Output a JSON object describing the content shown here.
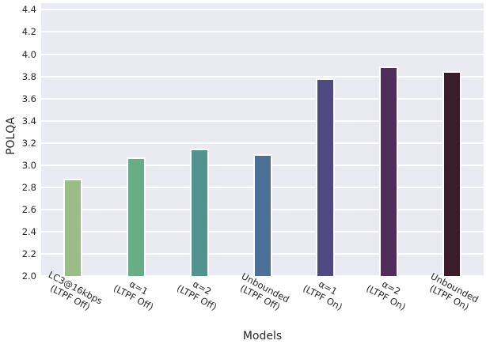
{
  "style": {
    "figure_bg": "#ffffff",
    "plot_bg": "#eaeaf2",
    "grid_color": "#ffffff",
    "text_color": "#262626",
    "bar_edge_color": "#ffffff"
  },
  "chart_data": {
    "type": "bar",
    "title": "",
    "xlabel": "Models",
    "ylabel": "POLQA",
    "ylim": [
      2.0,
      4.46
    ],
    "yticks": [
      2.0,
      2.2,
      2.4,
      2.6,
      2.8,
      3.0,
      3.2,
      3.4,
      3.6,
      3.8,
      4.0,
      4.2,
      4.4
    ],
    "grid": "horizontal-only, white solid lines on light lavender background (seaborn darkgrid)",
    "legend": "none",
    "categories": [
      "LC3@16kbps\n(LTPF Off)",
      "α=1\n(LTPF Off)",
      "α=2\n(LTPF Off)",
      "Unbounded\n(LTPF Off)",
      "α=1\n(LTPF On)",
      "α=2\n(LTPF On)",
      "Unbounded\n(LTPF On)"
    ],
    "values": [
      2.88,
      3.07,
      3.15,
      3.1,
      3.78,
      3.89,
      3.85
    ],
    "bars": [
      {
        "label_line1": "LC3@16kbps",
        "label_line2": "(LTPF Off)",
        "value": 2.88,
        "color": "#9abd87"
      },
      {
        "label_line1": "α=1",
        "label_line2": "(LTPF Off)",
        "value": 3.07,
        "color": "#68ae85"
      },
      {
        "label_line1": "α=2",
        "label_line2": "(LTPF Off)",
        "value": 3.15,
        "color": "#529390"
      },
      {
        "label_line1": "Unbounded",
        "label_line2": "(LTPF Off)",
        "value": 3.1,
        "color": "#4c7196"
      },
      {
        "label_line1": "α=1",
        "label_line2": "(LTPF On)",
        "value": 3.78,
        "color": "#4f4a81"
      },
      {
        "label_line1": "α=2",
        "label_line2": "(LTPF On)",
        "value": 3.89,
        "color": "#502d5a"
      },
      {
        "label_line1": "Unbounded",
        "label_line2": "(LTPF On)",
        "value": 3.85,
        "color": "#3a1c2b"
      }
    ]
  }
}
